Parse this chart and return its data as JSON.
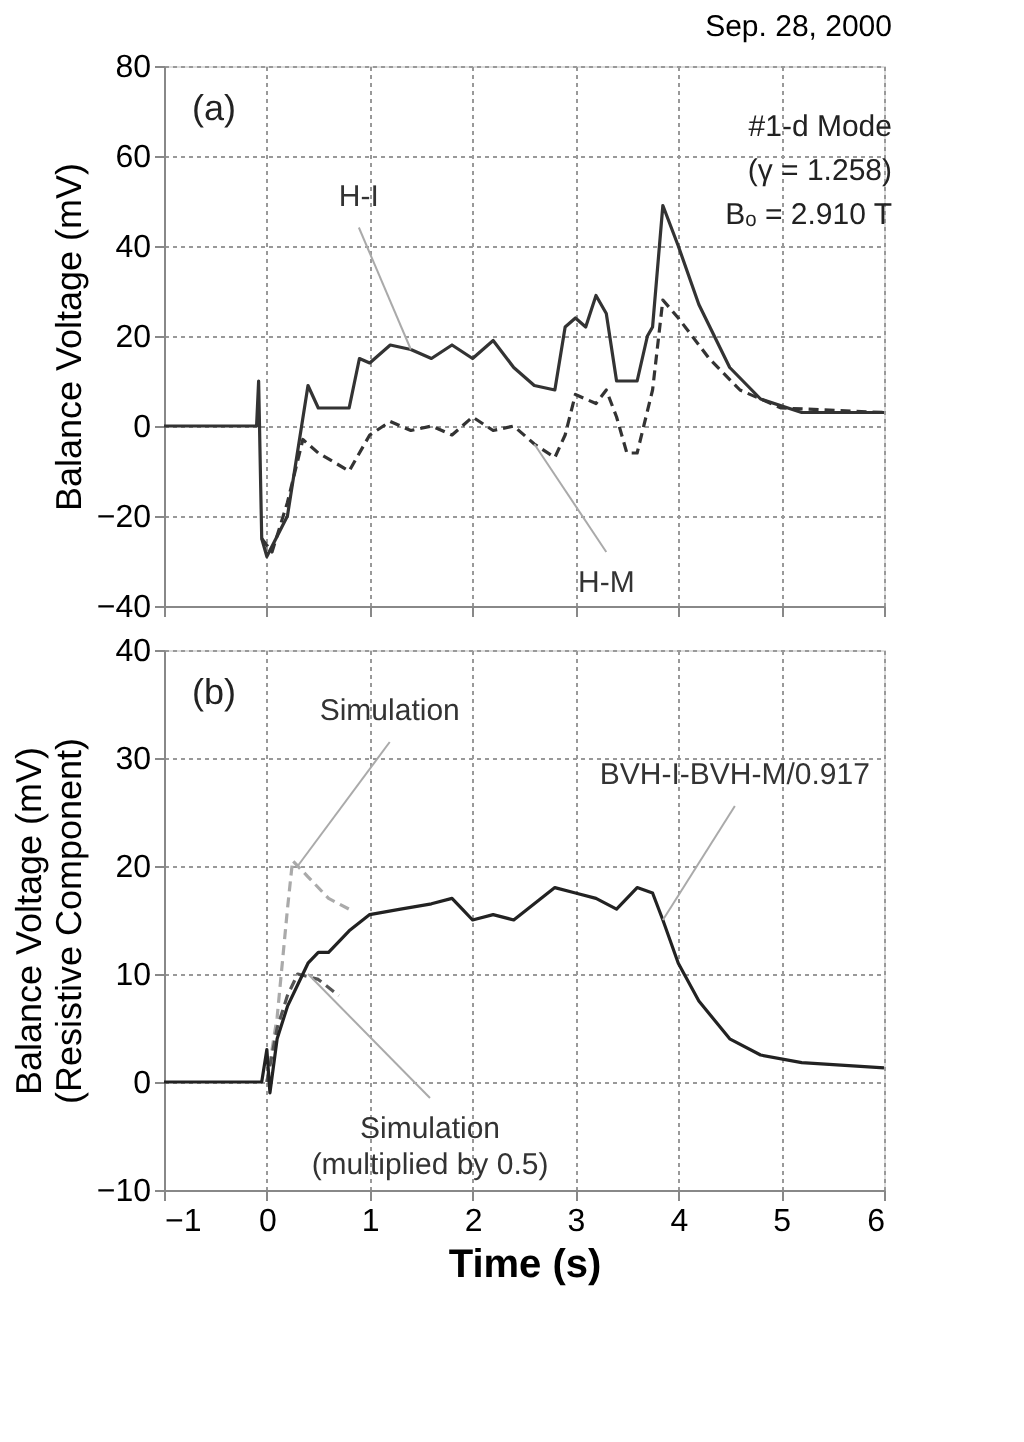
{
  "chart_data": [
    {
      "type": "line",
      "title": "Sep. 28, 2000",
      "ylabel": "Balance Voltage (mV)",
      "xlim": [
        -1,
        6
      ],
      "xticks": [
        -1,
        0,
        1,
        2,
        3,
        4,
        5,
        6
      ],
      "ylim": [
        -40,
        80
      ],
      "yticks": [
        -40,
        -20,
        0,
        20,
        40,
        60,
        80
      ],
      "grid": true,
      "tick_labels": "y",
      "series": [
        {
          "color": "#333333",
          "line_style": "solid",
          "x": [
            -1,
            -0.1,
            -0.08,
            -0.05,
            0.0,
            0.2,
            0.4,
            0.5,
            0.8,
            0.9,
            1.0,
            1.2,
            1.4,
            1.6,
            1.8,
            2.0,
            2.2,
            2.4,
            2.6,
            2.8,
            2.9,
            3.0,
            3.1,
            3.2,
            3.3,
            3.4,
            3.6,
            3.7,
            3.75,
            3.85,
            4.0,
            4.2,
            4.5,
            4.8,
            5.2,
            6
          ],
          "values": [
            0,
            0,
            10,
            -25,
            -29,
            -20,
            9,
            4,
            4,
            15,
            14,
            18,
            17,
            15,
            18,
            15,
            19,
            13,
            9,
            8,
            22,
            24,
            22,
            29,
            25,
            10,
            10,
            20,
            22,
            49,
            40,
            27,
            13,
            6,
            3,
            3
          ]
        },
        {
          "color": "#333333",
          "line_style": "dashed",
          "x": [
            -0.05,
            0.05,
            0.2,
            0.35,
            0.5,
            0.8,
            1.0,
            1.2,
            1.4,
            1.6,
            1.8,
            2.0,
            2.2,
            2.4,
            2.6,
            2.8,
            2.9,
            3.0,
            3.2,
            3.3,
            3.4,
            3.5,
            3.6,
            3.75,
            3.85,
            4.0,
            4.3,
            4.6,
            5.0,
            6
          ],
          "values": [
            -25,
            -28,
            -17,
            -3,
            -6,
            -10,
            -2,
            1,
            -1,
            0,
            -2,
            2,
            -1,
            0,
            -4,
            -7,
            -2,
            7,
            5,
            8,
            2,
            -6,
            -6,
            8,
            28,
            24,
            15,
            8,
            4,
            3
          ]
        }
      ],
      "annotations": [
        "(a)",
        "#1-d Mode",
        "(γ = 1.258)",
        "Bₒ = 2.910 T",
        {
          "text": "H-I",
          "x": 1.4,
          "y": 17
        },
        {
          "text": "H-M",
          "x": 2.6,
          "y": -4
        }
      ]
    },
    {
      "type": "line",
      "xlabel": "Time (s)",
      "ylabel": "Balance Voltage (mV)\n(Resistive Component)",
      "xlim": [
        -1,
        6
      ],
      "xticks": [
        -1,
        0,
        1,
        2,
        3,
        4,
        5,
        6
      ],
      "ylim": [
        -10,
        40
      ],
      "yticks": [
        -10,
        0,
        10,
        20,
        30,
        40
      ],
      "grid": true,
      "series": [
        {
          "color": "#aaaaaa",
          "line_style": "dashed",
          "x": [
            0,
            0.1,
            0.2,
            0.25,
            0.4,
            0.6,
            0.8
          ],
          "values": [
            0,
            6,
            16,
            20.5,
            19,
            17,
            16
          ]
        },
        {
          "color": "#555555",
          "line_style": "dashed",
          "x": [
            0,
            0.1,
            0.2,
            0.3,
            0.5,
            0.7
          ],
          "values": [
            0,
            5,
            8,
            10,
            9.5,
            8
          ]
        },
        {
          "color": "#222222",
          "line_style": "solid",
          "x": [
            -1,
            -0.05,
            0,
            0.03,
            0.1,
            0.2,
            0.3,
            0.4,
            0.5,
            0.6,
            0.7,
            0.8,
            1.0,
            1.3,
            1.6,
            1.8,
            1.9,
            2.0,
            2.2,
            2.4,
            2.6,
            2.8,
            3.0,
            3.2,
            3.4,
            3.5,
            3.6,
            3.75,
            3.85,
            4.0,
            4.2,
            4.5,
            4.8,
            5.2,
            6
          ],
          "values": [
            0,
            0,
            3,
            -1,
            4,
            7,
            9,
            11,
            12,
            12,
            13,
            14,
            15.5,
            16,
            16.5,
            17,
            16,
            15,
            15.5,
            15,
            16.5,
            18,
            17.5,
            17,
            16,
            17,
            18,
            17.5,
            15,
            11,
            7.5,
            4,
            2.5,
            1.8,
            1.3
          ]
        }
      ],
      "annotations": [
        "(b)",
        {
          "text": "Simulation",
          "x": 0.3,
          "y": 20
        },
        {
          "text": "Simulation\n(multiplied by 0.5)",
          "x": 0.4,
          "y": 10
        },
        {
          "text": "BVH-I-BVH-M/0.917",
          "x": 3.85,
          "y": 15
        }
      ]
    }
  ]
}
